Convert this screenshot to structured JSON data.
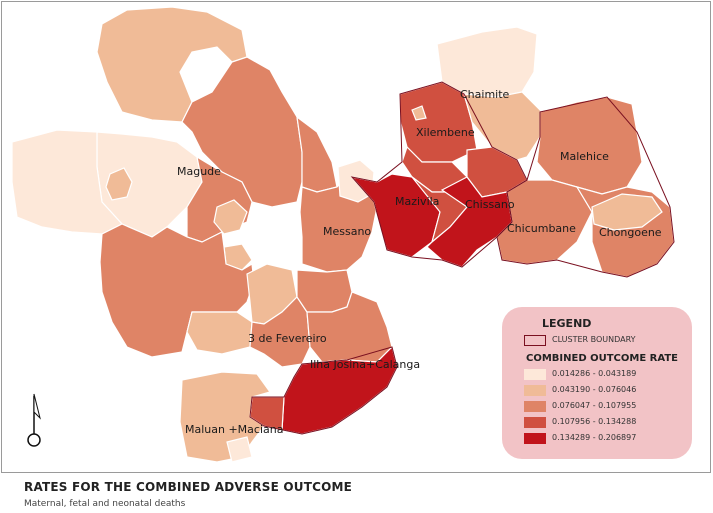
{
  "colors": {
    "class1": "#fde8d9",
    "class2": "#f0bb97",
    "class3": "#df8466",
    "class4": "#d05040",
    "class5": "#c1141b",
    "cluster_boundary": "#7a1020",
    "legend_bg": "#f2c3c6"
  },
  "map": {
    "labels": {
      "chaimite": "Chaimite",
      "xilembene": "Xilembene",
      "magude": "Magude",
      "malehice": "Malehice",
      "mazivila": "Mazivila",
      "chissano": "Chissano",
      "messano": "Messano",
      "chicumbane": "Chicumbane",
      "chongoene": "Chongoene",
      "tres_de_fevereiro": "3 de Fevereiro",
      "ilha_josina": "Ilha Josina+Calanga",
      "maluan": "Maluan +Maciana"
    }
  },
  "legend": {
    "title": "LEGEND",
    "cluster_label": "CLUSTER BOUNDARY",
    "rate_title": "COMBINED OUTCOME RATE",
    "classes": [
      "0.014286 - 0.043189",
      "0.043190 - 0.076046",
      "0.076047 - 0.107955",
      "0.107956 - 0.134288",
      "0.134289 - 0.206897"
    ]
  },
  "footer": {
    "title": "RATES FOR THE COMBINED ADVERSE OUTCOME",
    "subtitle": "Maternal, fetal and neonatal deaths"
  },
  "north_arrow_icon": "north-arrow-icon"
}
